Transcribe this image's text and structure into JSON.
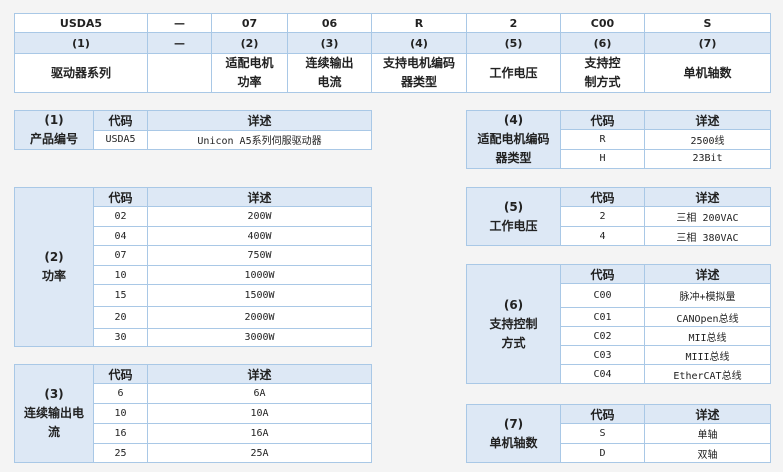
{
  "top": {
    "codes": [
      "USDA5",
      "—",
      "07",
      "06",
      "R",
      "2",
      "C00",
      "S"
    ],
    "indices": [
      "(1)",
      "—",
      "(2)",
      "(3)",
      "(4)",
      "(5)",
      "(6)",
      "(7)"
    ],
    "names": [
      "驱动器系列",
      "",
      "适配电机\n功率",
      "连续输出\n电流",
      "支持电机编码\n器类型",
      "工作电压",
      "支持控\n制方式",
      "单机轴数"
    ]
  },
  "col_code": "代码",
  "col_desc": "详述",
  "tables": [
    {
      "index": "(1)",
      "title": "产品编号",
      "rows": [
        [
          "USDA5",
          "Unicon A5系列伺服驱动器"
        ]
      ]
    },
    {
      "index": "(2)",
      "title": "功率",
      "rows": [
        [
          "02",
          "200W"
        ],
        [
          "04",
          "400W"
        ],
        [
          "07",
          "750W"
        ],
        [
          "10",
          "1000W"
        ],
        [
          "15",
          "1500W"
        ],
        [
          "20",
          "2000W"
        ],
        [
          "30",
          "3000W"
        ]
      ]
    },
    {
      "index": "(3)",
      "title": "连续输出电\n流",
      "rows": [
        [
          "6",
          "6A"
        ],
        [
          "10",
          "10A"
        ],
        [
          "16",
          "16A"
        ],
        [
          "25",
          "25A"
        ]
      ]
    },
    {
      "index": "(4)",
      "title": "适配电机编码\n器类型",
      "rows": [
        [
          "R",
          "2500线"
        ],
        [
          "H",
          "23Bit"
        ]
      ]
    },
    {
      "index": "(5)",
      "title": "工作电压",
      "rows": [
        [
          "2",
          "三相 200VAC"
        ],
        [
          "4",
          "三相 380VAC"
        ]
      ]
    },
    {
      "index": "(6)",
      "title": "支持控制\n方式",
      "rows": [
        [
          "C00",
          "脉冲+模拟量"
        ],
        [
          "C01",
          "CANOpen总线"
        ],
        [
          "C02",
          "MII总线"
        ],
        [
          "C03",
          "MIII总线"
        ],
        [
          "C04",
          "EtherCAT总线"
        ]
      ]
    },
    {
      "index": "(7)",
      "title": "单机轴数",
      "rows": [
        [
          "S",
          "单轴"
        ],
        [
          "D",
          "双轴"
        ]
      ]
    }
  ]
}
